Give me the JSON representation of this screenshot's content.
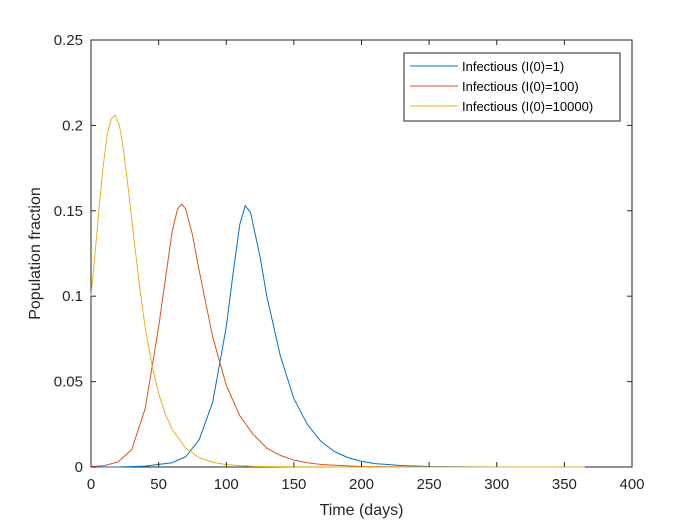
{
  "chart_data": {
    "type": "line",
    "title": "",
    "xlabel": "Time (days)",
    "ylabel": "Population fraction",
    "xlim": [
      0,
      400
    ],
    "ylim": [
      0,
      0.25
    ],
    "xticks": [
      0,
      50,
      100,
      150,
      200,
      250,
      300,
      350,
      400
    ],
    "yticks": [
      0,
      0.05,
      0.1,
      0.15,
      0.2,
      0.25
    ],
    "ytick_labels": [
      "0",
      "0.05",
      "0.1",
      "0.15",
      "0.2",
      "0.25"
    ],
    "grid": false,
    "legend_position": "top-right",
    "series": [
      {
        "name": "Infectious (I(0)=1)",
        "color": "#0072BD",
        "x": [
          0,
          20,
          40,
          60,
          70,
          80,
          90,
          100,
          105,
          110,
          114,
          118,
          125,
          130,
          140,
          150,
          160,
          170,
          180,
          190,
          200,
          210,
          230,
          250,
          300,
          365
        ],
        "y": [
          0.0,
          0.0,
          0.0005,
          0.0025,
          0.006,
          0.016,
          0.038,
          0.082,
          0.113,
          0.142,
          0.153,
          0.149,
          0.123,
          0.1,
          0.065,
          0.04,
          0.025,
          0.015,
          0.009,
          0.0055,
          0.0033,
          0.002,
          0.0008,
          0.0003,
          0.0,
          0.0
        ]
      },
      {
        "name": "Infectious (I(0)=100)",
        "color": "#D95319",
        "x": [
          0,
          10,
          20,
          30,
          40,
          50,
          55,
          60,
          64,
          67,
          70,
          75,
          80,
          90,
          100,
          110,
          120,
          130,
          140,
          150,
          160,
          170,
          180,
          200,
          250,
          365
        ],
        "y": [
          0.0002,
          0.0008,
          0.003,
          0.01,
          0.034,
          0.082,
          0.11,
          0.138,
          0.151,
          0.154,
          0.151,
          0.136,
          0.115,
          0.076,
          0.048,
          0.03,
          0.019,
          0.011,
          0.0068,
          0.004,
          0.0025,
          0.0015,
          0.001,
          0.0003,
          0.0,
          0.0
        ]
      },
      {
        "name": "Infectious (I(0)=10000)",
        "color": "#EDB120",
        "x": [
          0,
          3,
          6,
          9,
          12,
          15,
          18,
          21,
          24,
          28,
          32,
          36,
          40,
          45,
          50,
          55,
          60,
          70,
          80,
          90,
          100,
          120,
          150,
          200,
          250,
          365
        ],
        "y": [
          0.1,
          0.125,
          0.152,
          0.176,
          0.195,
          0.204,
          0.206,
          0.2,
          0.186,
          0.16,
          0.132,
          0.105,
          0.082,
          0.06,
          0.043,
          0.031,
          0.022,
          0.011,
          0.0055,
          0.0028,
          0.0014,
          0.0004,
          0.0001,
          0.0,
          0.0,
          0.0
        ]
      }
    ]
  }
}
